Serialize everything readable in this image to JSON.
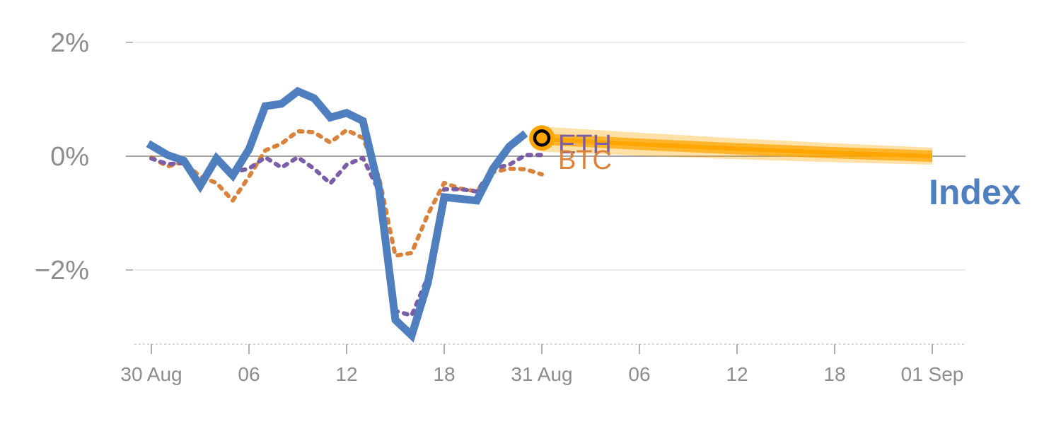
{
  "chart_data": {
    "type": "line",
    "title": "",
    "xlabel": "",
    "ylabel": "",
    "x_tick_labels": [
      "30 Aug",
      "06",
      "12",
      "18",
      "31 Aug",
      "06",
      "12",
      "18",
      "01 Sep"
    ],
    "y_tick_labels": [
      "2%",
      "0%",
      "−2%"
    ],
    "y_ticks": [
      2,
      0,
      -2
    ],
    "ylim": [
      -3.3,
      2.2
    ],
    "xlim": [
      -1,
      48.5
    ],
    "zero_line": true,
    "grid": true,
    "colors": {
      "index": "#4f7fbf",
      "btc": "#d9823b",
      "eth": "#7a5fa8",
      "forecast": "#ffa500"
    },
    "series": [
      {
        "name": "Index",
        "style": "solid",
        "x": [
          -0.2,
          1,
          2,
          3,
          4,
          5,
          6,
          7,
          8,
          9,
          10,
          11,
          12,
          13,
          14,
          15,
          16,
          17,
          18,
          19,
          20,
          21,
          22,
          23
        ],
        "values": [
          0.22,
          0.02,
          -0.08,
          -0.52,
          -0.04,
          -0.34,
          0.12,
          0.88,
          0.92,
          1.14,
          1.02,
          0.68,
          0.76,
          0.62,
          -0.58,
          -2.88,
          -3.15,
          -2.22,
          -0.72,
          -0.75,
          -0.78,
          -0.22,
          0.17,
          0.4
        ]
      },
      {
        "name": "BTC",
        "style": "dotted",
        "x": [
          0,
          1,
          2,
          3,
          4,
          5,
          6,
          7,
          8,
          9,
          10,
          11,
          12,
          13,
          14,
          15,
          16,
          17,
          18,
          19,
          20,
          21,
          22,
          23,
          24
        ],
        "values": [
          -0.02,
          -0.18,
          -0.1,
          -0.36,
          -0.47,
          -0.78,
          -0.36,
          0.1,
          0.22,
          0.44,
          0.42,
          0.24,
          0.46,
          0.32,
          -0.38,
          -1.75,
          -1.7,
          -1.02,
          -0.47,
          -0.57,
          -0.62,
          -0.28,
          -0.22,
          -0.23,
          -0.32
        ]
      },
      {
        "name": "ETH",
        "style": "dotted",
        "x": [
          0,
          1,
          2,
          3,
          4,
          5,
          6,
          7,
          8,
          9,
          10,
          11,
          12,
          13,
          14,
          15,
          16,
          17,
          18,
          19,
          20,
          21,
          22,
          23,
          24
        ],
        "values": [
          -0.04,
          -0.14,
          -0.12,
          -0.52,
          -0.1,
          -0.28,
          -0.22,
          -0.02,
          -0.2,
          -0.02,
          -0.22,
          -0.48,
          -0.15,
          -0.03,
          -0.62,
          -2.72,
          -2.8,
          -2.12,
          -0.58,
          -0.58,
          -0.62,
          -0.22,
          -0.15,
          0.02,
          0.02
        ]
      },
      {
        "name": "forecast",
        "style": "band",
        "x": [
          24,
          30,
          36,
          42,
          48
        ],
        "values": [
          0.3,
          0.21,
          0.13,
          0.06,
          0.0
        ],
        "band_inner": 0.1,
        "band_outer": 0.22
      }
    ],
    "current_point": {
      "x": 24,
      "value": 0.32
    },
    "series_labels": {
      "eth": "ETH",
      "btc": "BTC",
      "index": "Index"
    }
  }
}
